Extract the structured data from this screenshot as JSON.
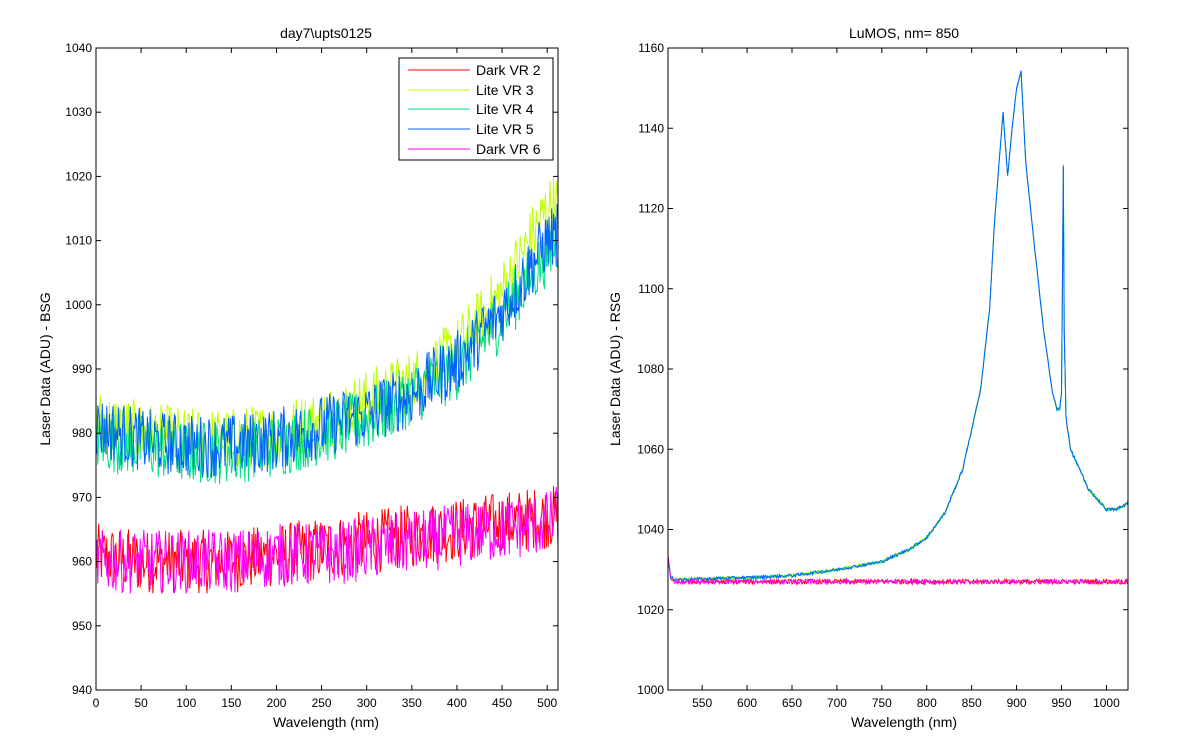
{
  "chart_data": [
    {
      "type": "line",
      "title": "day7\\upts0125",
      "xlabel": "Wavelength (nm)",
      "ylabel": "Laser Data (ADU) - BSG",
      "xlim": [
        0,
        512
      ],
      "ylim": [
        940,
        1040
      ],
      "xticks": [
        0,
        50,
        100,
        150,
        200,
        250,
        300,
        350,
        400,
        450,
        500
      ],
      "yticks": [
        940,
        950,
        960,
        970,
        980,
        990,
        1000,
        1010,
        1020,
        1030,
        1040
      ],
      "grid": false,
      "legend_position": "top-right",
      "noisy": true,
      "series": [
        {
          "name": "Dark VR 2",
          "color": "#ff0000",
          "x": [
            0,
            50,
            100,
            150,
            200,
            250,
            300,
            350,
            400,
            450,
            500,
            512
          ],
          "y": [
            961,
            960,
            960,
            960,
            961,
            962,
            963,
            964,
            965,
            966,
            967,
            967
          ],
          "noise": 5
        },
        {
          "name": "Lite VR 3",
          "color": "#c0ff00",
          "x": [
            0,
            50,
            100,
            150,
            200,
            250,
            300,
            350,
            400,
            450,
            500,
            512
          ],
          "y": [
            982,
            980,
            979,
            979,
            980,
            982,
            985,
            988,
            993,
            1002,
            1015,
            1016
          ],
          "noise": 5
        },
        {
          "name": "Lite VR 4",
          "color": "#00e080",
          "x": [
            0,
            50,
            100,
            150,
            200,
            250,
            300,
            350,
            400,
            450,
            500,
            512
          ],
          "y": [
            979,
            978,
            977,
            977,
            978,
            980,
            982,
            986,
            990,
            998,
            1008,
            1010
          ],
          "noise": 5
        },
        {
          "name": "Lite VR 5",
          "color": "#0060ff",
          "x": [
            0,
            50,
            100,
            150,
            200,
            250,
            300,
            350,
            400,
            450,
            500,
            512
          ],
          "y": [
            981,
            979,
            978,
            978,
            979,
            981,
            983,
            986,
            991,
            999,
            1010,
            1011
          ],
          "noise": 5
        },
        {
          "name": "Dark VR 6",
          "color": "#ff00ff",
          "x": [
            0,
            50,
            100,
            150,
            200,
            250,
            300,
            350,
            400,
            450,
            500,
            512
          ],
          "y": [
            960,
            960,
            960,
            960,
            961,
            961,
            962,
            963,
            964,
            965,
            966,
            967
          ],
          "noise": 5
        }
      ]
    },
    {
      "type": "line",
      "title": "LuMOS, nm= 850",
      "xlabel": "Wavelength (nm)",
      "ylabel": "Laser Data (ADU) - RSG",
      "xlim": [
        512,
        1024
      ],
      "ylim": [
        1000,
        1160
      ],
      "xticks": [
        550,
        600,
        650,
        700,
        750,
        800,
        850,
        900,
        950,
        1000
      ],
      "yticks": [
        1000,
        1020,
        1040,
        1060,
        1080,
        1100,
        1120,
        1140,
        1160
      ],
      "grid": false,
      "noisy": false,
      "series": [
        {
          "name": "Dark VR 2",
          "color": "#ff0000",
          "x": [
            512,
            515,
            520,
            1024
          ],
          "y": [
            1033,
            1028,
            1027,
            1027
          ],
          "noise": 0.6
        },
        {
          "name": "Lite VR 3",
          "color": "#c0ff00",
          "x": [
            512,
            515,
            520,
            600,
            650,
            700,
            750,
            780,
            800,
            820,
            840,
            860,
            870,
            875,
            880,
            885,
            890,
            895,
            900,
            905,
            910,
            920,
            930,
            940,
            945,
            948,
            950,
            951,
            952,
            953,
            955,
            960,
            980,
            1000,
            1010,
            1020,
            1024
          ],
          "y": [
            1033,
            1028,
            1027.5,
            1028,
            1028.5,
            1030,
            1032,
            1035,
            1038,
            1044,
            1055,
            1075,
            1095,
            1115,
            1130,
            1144,
            1128,
            1140,
            1150,
            1154,
            1132,
            1110,
            1090,
            1074,
            1070,
            1070,
            1074,
            1100,
            1131,
            1090,
            1068,
            1060,
            1050,
            1045,
            1045,
            1046,
            1047
          ],
          "noise": 0.4
        },
        {
          "name": "Lite VR 4",
          "color": "#00e080",
          "x": [
            512,
            515,
            520,
            600,
            650,
            700,
            750,
            780,
            800,
            820,
            840,
            860,
            870,
            875,
            880,
            885,
            890,
            895,
            900,
            905,
            910,
            920,
            930,
            940,
            945,
            948,
            950,
            951,
            952,
            953,
            955,
            960,
            980,
            1000,
            1010,
            1020,
            1024
          ],
          "y": [
            1033,
            1028,
            1027.5,
            1028,
            1028.5,
            1030,
            1032,
            1035,
            1038,
            1044,
            1055,
            1075,
            1095,
            1115,
            1130,
            1144,
            1128,
            1140,
            1150,
            1154,
            1132,
            1110,
            1090,
            1074,
            1070,
            1070,
            1074,
            1100,
            1131,
            1090,
            1068,
            1060,
            1050,
            1045,
            1045,
            1046,
            1047
          ],
          "noise": 0.4
        },
        {
          "name": "Lite VR 5",
          "color": "#0060ff",
          "x": [
            512,
            515,
            520,
            600,
            650,
            700,
            750,
            780,
            800,
            820,
            840,
            860,
            870,
            875,
            880,
            885,
            890,
            895,
            900,
            905,
            910,
            920,
            930,
            940,
            945,
            948,
            950,
            951,
            952,
            953,
            955,
            960,
            980,
            1000,
            1010,
            1020,
            1024
          ],
          "y": [
            1033,
            1028,
            1027.5,
            1028,
            1028.5,
            1030,
            1032,
            1035,
            1038,
            1044,
            1055,
            1075,
            1095,
            1115,
            1130,
            1144,
            1128,
            1140,
            1150,
            1154,
            1132,
            1110,
            1090,
            1074,
            1070,
            1070,
            1074,
            1100,
            1131,
            1090,
            1068,
            1060,
            1050,
            1045,
            1045,
            1046,
            1047
          ],
          "noise": 0.4
        },
        {
          "name": "Dark VR 6",
          "color": "#ff00ff",
          "x": [
            512,
            515,
            520,
            1024
          ],
          "y": [
            1033,
            1028,
            1027,
            1027
          ],
          "noise": 0.6
        }
      ]
    }
  ]
}
